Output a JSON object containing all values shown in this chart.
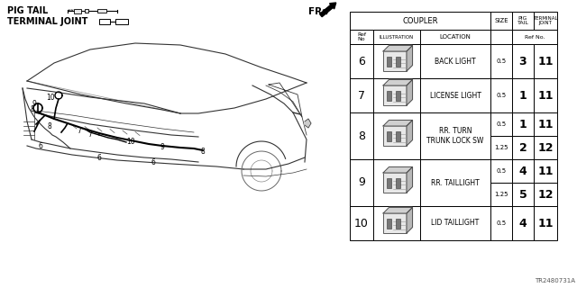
{
  "bg_color": "#ffffff",
  "footer_text": "TR2480731A",
  "rows": [
    {
      "ref": "6",
      "location": "BACK LIGHT",
      "size1": "0.5",
      "pig1": "3",
      "tj1": "11",
      "size2": null,
      "pig2": null,
      "tj2": null
    },
    {
      "ref": "7",
      "location": "LICENSE LIGHT",
      "size1": "0.5",
      "pig1": "1",
      "tj1": "11",
      "size2": null,
      "pig2": null,
      "tj2": null
    },
    {
      "ref": "8",
      "location": "RR. TURN\nTRUNK LOCK SW",
      "size1": "0.5",
      "pig1": "1",
      "tj1": "11",
      "size2": "1.25",
      "pig2": "2",
      "tj2": "12"
    },
    {
      "ref": "9",
      "location": "RR. TAILLIGHT",
      "size1": "0.5",
      "pig1": "4",
      "tj1": "11",
      "size2": "1.25",
      "pig2": "5",
      "tj2": "12"
    },
    {
      "ref": "10",
      "location": "LID TAILLIGHT",
      "size1": "0.5",
      "pig1": "4",
      "tj1": "11",
      "size2": null,
      "pig2": null,
      "tj2": null
    }
  ]
}
